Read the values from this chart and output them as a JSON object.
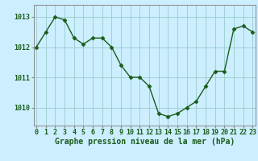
{
  "x": [
    0,
    1,
    2,
    3,
    4,
    5,
    6,
    7,
    8,
    9,
    10,
    11,
    12,
    13,
    14,
    15,
    16,
    17,
    18,
    19,
    20,
    21,
    22,
    23
  ],
  "y": [
    1012.0,
    1012.5,
    1013.0,
    1012.9,
    1012.3,
    1012.1,
    1012.3,
    1012.3,
    1012.0,
    1011.4,
    1011.0,
    1011.0,
    1010.7,
    1009.8,
    1009.7,
    1009.8,
    1010.0,
    1010.2,
    1010.7,
    1011.2,
    1011.2,
    1012.6,
    1012.7,
    1012.5
  ],
  "line_color": "#1a5c1a",
  "marker": "D",
  "marker_size": 2.5,
  "bg_color": "#cceeff",
  "grid_color": "#99cccc",
  "axis_color": "#888888",
  "yticks": [
    1010,
    1011,
    1012,
    1013
  ],
  "xticks": [
    0,
    1,
    2,
    3,
    4,
    5,
    6,
    7,
    8,
    9,
    10,
    11,
    12,
    13,
    14,
    15,
    16,
    17,
    18,
    19,
    20,
    21,
    22,
    23
  ],
  "xlabel": "Graphe pression niveau de la mer (hPa)",
  "ylim": [
    1009.4,
    1013.4
  ],
  "xlim": [
    -0.3,
    23.3
  ],
  "xlabel_fontsize": 7.0,
  "tick_fontsize": 6.0,
  "label_color": "#1a5c1a",
  "linewidth": 1.0
}
